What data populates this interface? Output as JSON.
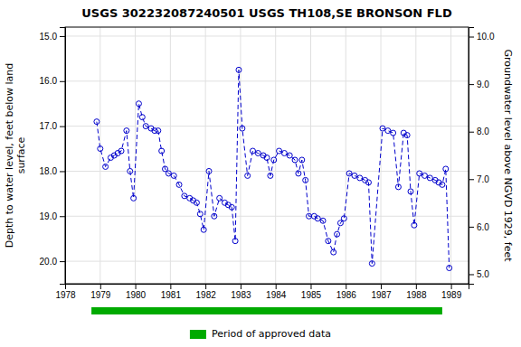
{
  "chart_data": {
    "type": "line",
    "title": "USGS 302232087240501 USGS TH108,SE BRONSON FLD",
    "ylabel": "Depth to water level, feet below land\nsurface",
    "y2label": "Groundwater level above NGVD 1929, feet",
    "xlim": [
      1978.0,
      1989.5
    ],
    "xticks": [
      1978,
      1979,
      1980,
      1981,
      1982,
      1983,
      1984,
      1985,
      1986,
      1987,
      1988,
      1989
    ],
    "ylim": [
      20.5,
      14.8
    ],
    "yticks": [
      {
        "value": 15.0,
        "label": "15.0"
      },
      {
        "value": 16.0,
        "label": "16.0"
      },
      {
        "value": 17.0,
        "label": "17.0"
      },
      {
        "value": 18.0,
        "label": "18.0"
      },
      {
        "value": 19.0,
        "label": "19.0"
      },
      {
        "value": 20.0,
        "label": "20.0"
      }
    ],
    "y2lim": [
      4.8,
      10.2
    ],
    "y2ticks": [
      {
        "value": 10.0,
        "label": "10.0"
      },
      {
        "value": 9.0,
        "label": "9.0"
      },
      {
        "value": 8.0,
        "label": "8.0"
      },
      {
        "value": 7.0,
        "label": "7.0"
      },
      {
        "value": 6.0,
        "label": "6.0"
      },
      {
        "value": 5.0,
        "label": "5.0"
      }
    ],
    "grid": true,
    "x": [
      1978.9,
      1979.0,
      1979.15,
      1979.3,
      1979.4,
      1979.5,
      1979.6,
      1979.75,
      1979.85,
      1979.95,
      1980.1,
      1980.2,
      1980.3,
      1980.45,
      1980.55,
      1980.65,
      1980.75,
      1980.85,
      1980.95,
      1981.1,
      1981.25,
      1981.4,
      1981.55,
      1981.65,
      1981.75,
      1981.85,
      1981.95,
      1982.1,
      1982.25,
      1982.4,
      1982.55,
      1982.65,
      1982.75,
      1982.85,
      1982.95,
      1983.05,
      1983.2,
      1983.35,
      1983.5,
      1983.65,
      1983.75,
      1983.85,
      1983.95,
      1984.1,
      1984.25,
      1984.4,
      1984.55,
      1984.65,
      1984.75,
      1984.85,
      1984.95,
      1985.1,
      1985.2,
      1985.35,
      1985.5,
      1985.65,
      1985.75,
      1985.85,
      1985.95,
      1986.1,
      1986.25,
      1986.4,
      1986.55,
      1986.65,
      1986.75,
      1987.05,
      1987.2,
      1987.35,
      1987.5,
      1987.65,
      1987.75,
      1987.85,
      1987.95,
      1988.1,
      1988.25,
      1988.4,
      1988.55,
      1988.65,
      1988.75,
      1988.85,
      1988.95
    ],
    "series": [
      {
        "color": "#0000CC",
        "marker": "circle-open",
        "line_style": "dashed",
        "values": [
          16.9,
          17.5,
          17.9,
          17.7,
          17.65,
          17.6,
          17.55,
          17.1,
          18.0,
          18.6,
          16.5,
          16.8,
          17.0,
          17.05,
          17.1,
          17.1,
          17.55,
          17.95,
          18.05,
          18.1,
          18.3,
          18.55,
          18.6,
          18.65,
          18.7,
          18.95,
          19.3,
          18.0,
          19.0,
          18.6,
          18.7,
          18.75,
          18.8,
          19.55,
          15.75,
          17.05,
          18.1,
          17.55,
          17.6,
          17.65,
          17.7,
          18.1,
          17.75,
          17.55,
          17.6,
          17.65,
          17.75,
          18.05,
          17.75,
          18.2,
          19.0,
          19.0,
          19.05,
          19.1,
          19.55,
          19.8,
          19.4,
          19.15,
          19.05,
          18.05,
          18.1,
          18.15,
          18.2,
          18.25,
          20.05,
          17.05,
          17.1,
          17.15,
          18.35,
          17.15,
          17.2,
          18.45,
          19.2,
          18.05,
          18.1,
          18.15,
          18.2,
          18.25,
          18.3,
          17.95,
          20.15
        ]
      }
    ],
    "approved_period": {
      "name": "Period of approved data",
      "color": "#00aa00",
      "x": [
        1978.75,
        1988.75
      ]
    }
  }
}
